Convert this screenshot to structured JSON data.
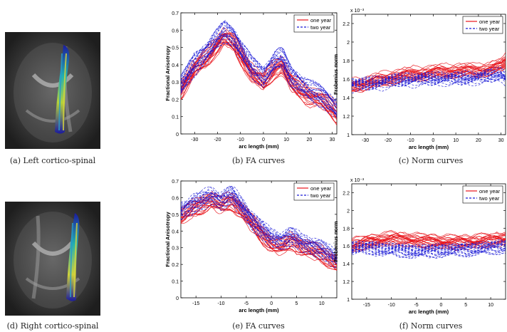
{
  "figure": {
    "captions": [
      "(a) Left cortico-spinal",
      "(b) FA curves",
      "(c) Norm curves",
      "(d) Right cortico-spinal",
      "(e) FA curves",
      "(f) Norm curves"
    ],
    "legend": {
      "one_year": "one year",
      "two_year": "two year"
    },
    "colors": {
      "one_year": "#e8141b",
      "two_year": "#1a1ad6"
    }
  },
  "chart_data": [
    {
      "id": "b",
      "type": "line",
      "xlabel": "arc length (mm)",
      "ylabel": "Fractional Anisotropy",
      "xlim": [
        -36,
        32
      ],
      "ylim": [
        0,
        0.7
      ],
      "xticks": [
        -30,
        -20,
        -10,
        0,
        10,
        20,
        30
      ],
      "yticks": [
        0,
        0.1,
        0.2,
        0.3,
        0.4,
        0.5,
        0.6,
        0.7
      ],
      "ytick_labels": [
        "0",
        "0.1",
        "0.2",
        "0.3",
        "0.4",
        "0.5",
        "0.6",
        "0.7"
      ],
      "exponent_label": "",
      "legend_position": "top-right",
      "series": [
        {
          "group": "one year",
          "x": [
            -36,
            -30,
            -25,
            -20,
            -17,
            -13,
            -9,
            -5,
            0,
            5,
            8,
            12,
            16,
            20,
            25,
            30,
            32
          ],
          "y": [
            0.26,
            0.38,
            0.44,
            0.52,
            0.56,
            0.53,
            0.44,
            0.35,
            0.3,
            0.38,
            0.4,
            0.3,
            0.26,
            0.22,
            0.2,
            0.15,
            0.12
          ]
        },
        {
          "group": "two year",
          "x": [
            -36,
            -30,
            -25,
            -20,
            -17,
            -13,
            -9,
            -5,
            0,
            5,
            8,
            12,
            16,
            20,
            25,
            30,
            32
          ],
          "y": [
            0.28,
            0.4,
            0.47,
            0.55,
            0.59,
            0.56,
            0.47,
            0.38,
            0.33,
            0.42,
            0.44,
            0.33,
            0.29,
            0.25,
            0.22,
            0.17,
            0.14
          ]
        }
      ],
      "spread": 0.05
    },
    {
      "id": "c",
      "type": "line",
      "xlabel": "arc length (mm)",
      "ylabel": "Frobenius norm",
      "xlim": [
        -36,
        32
      ],
      "ylim": [
        1,
        2.3
      ],
      "xticks": [
        -30,
        -20,
        -10,
        0,
        10,
        20,
        30
      ],
      "yticks": [
        1,
        1.2,
        1.4,
        1.6,
        1.8,
        2,
        2.2
      ],
      "ytick_labels": [
        "1",
        "1.2",
        "1.4",
        "1.6",
        "1.8",
        "2",
        "2.2"
      ],
      "exponent_label": "x 10⁻³",
      "legend_position": "top-right",
      "series": [
        {
          "group": "one year",
          "x": [
            -36,
            -30,
            -20,
            -10,
            0,
            10,
            20,
            25,
            30,
            32
          ],
          "y": [
            1.54,
            1.56,
            1.62,
            1.66,
            1.68,
            1.7,
            1.7,
            1.72,
            1.75,
            1.8
          ]
        },
        {
          "group": "two year",
          "x": [
            -36,
            -30,
            -20,
            -10,
            0,
            10,
            20,
            25,
            30,
            32
          ],
          "y": [
            1.53,
            1.53,
            1.56,
            1.58,
            1.59,
            1.59,
            1.6,
            1.62,
            1.64,
            1.6
          ]
        }
      ],
      "spread": 0.07
    },
    {
      "id": "e",
      "type": "line",
      "xlabel": "arc length (mm)",
      "ylabel": "Fractional Anisotropy",
      "xlim": [
        -18,
        13
      ],
      "ylim": [
        0,
        0.7
      ],
      "xticks": [
        -15,
        -10,
        -5,
        0,
        5,
        10
      ],
      "yticks": [
        0,
        0.1,
        0.2,
        0.3,
        0.4,
        0.5,
        0.6,
        0.7
      ],
      "ytick_labels": [
        "0",
        "0.1",
        "0.2",
        "0.3",
        "0.4",
        "0.5",
        "0.6",
        "0.7"
      ],
      "exponent_label": "",
      "legend_position": "top-right",
      "series": [
        {
          "group": "one year",
          "x": [
            -18,
            -15,
            -12,
            -10,
            -8,
            -6,
            -4,
            -2,
            0,
            2,
            4,
            6,
            8,
            10,
            13
          ],
          "y": [
            0.48,
            0.54,
            0.58,
            0.55,
            0.58,
            0.52,
            0.45,
            0.38,
            0.32,
            0.3,
            0.34,
            0.3,
            0.28,
            0.26,
            0.2
          ]
        },
        {
          "group": "two year",
          "x": [
            -18,
            -15,
            -12,
            -10,
            -8,
            -6,
            -4,
            -2,
            0,
            2,
            4,
            6,
            8,
            10,
            13
          ],
          "y": [
            0.52,
            0.57,
            0.61,
            0.58,
            0.62,
            0.55,
            0.47,
            0.41,
            0.36,
            0.34,
            0.37,
            0.33,
            0.31,
            0.29,
            0.23
          ]
        }
      ],
      "spread": 0.05
    },
    {
      "id": "f",
      "type": "line",
      "xlabel": "arc length (mm)",
      "ylabel": "Frobenius norm",
      "xlim": [
        -18,
        13
      ],
      "ylim": [
        1,
        2.3
      ],
      "xticks": [
        -15,
        -10,
        -5,
        0,
        5,
        10
      ],
      "yticks": [
        1,
        1.2,
        1.4,
        1.6,
        1.8,
        2,
        2.2
      ],
      "ytick_labels": [
        "1",
        "1.2",
        "1.4",
        "1.6",
        "1.8",
        "2",
        "2.2"
      ],
      "exponent_label": "x 10⁻³",
      "legend_position": "top-right",
      "series": [
        {
          "group": "one year",
          "x": [
            -18,
            -15,
            -10,
            -5,
            0,
            5,
            10,
            13
          ],
          "y": [
            1.6,
            1.64,
            1.68,
            1.66,
            1.64,
            1.64,
            1.66,
            1.68
          ]
        },
        {
          "group": "two year",
          "x": [
            -18,
            -15,
            -10,
            -5,
            0,
            5,
            10,
            13
          ],
          "y": [
            1.58,
            1.58,
            1.56,
            1.54,
            1.55,
            1.56,
            1.58,
            1.6
          ]
        }
      ],
      "spread": 0.07
    }
  ]
}
